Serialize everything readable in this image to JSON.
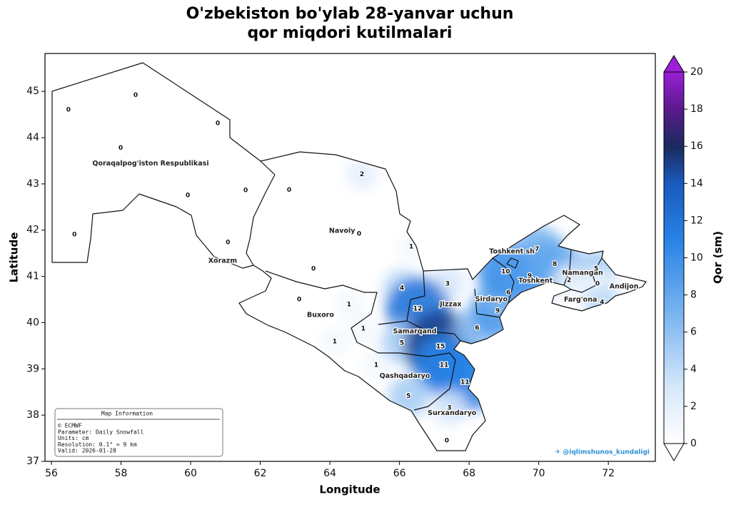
{
  "chart_data": {
    "type": "map",
    "title": [
      "O'zbekiston bo'ylab 28-yanvar uchun",
      "qor miqdori kutilmalari"
    ],
    "xlabel": "Longitude",
    "ylabel": "Latitude",
    "xlim": [
      55.815,
      73.35
    ],
    "ylim": [
      37,
      45.82
    ],
    "xticks": [
      56,
      58,
      60,
      62,
      64,
      66,
      68,
      70,
      72
    ],
    "yticks": [
      37,
      38,
      39,
      40,
      41,
      42,
      43,
      44,
      45
    ],
    "colorbar": {
      "label": "Qor (sm)",
      "lim": [
        0,
        20
      ],
      "ticks": [
        0,
        2,
        4,
        6,
        8,
        10,
        12,
        14,
        16,
        18,
        20
      ]
    },
    "regions": [
      {
        "name": "Qoraqalpog'iston Respublikasi",
        "lon": 58.85,
        "lat": 43.44
      },
      {
        "name": "Xorazm",
        "lon": 60.92,
        "lat": 41.33
      },
      {
        "name": "Navoiy",
        "lon": 64.35,
        "lat": 41.98
      },
      {
        "name": "Buxoro",
        "lon": 63.73,
        "lat": 40.16
      },
      {
        "name": "Samarqand",
        "lon": 66.44,
        "lat": 39.81
      },
      {
        "name": "Jizzax",
        "lon": 67.47,
        "lat": 40.39
      },
      {
        "name": "Sirdaryo",
        "lon": 68.64,
        "lat": 40.5
      },
      {
        "name": "Toshkent sh",
        "lon": 69.23,
        "lat": 41.53
      },
      {
        "name": "Toshkent",
        "lon": 69.91,
        "lat": 40.9
      },
      {
        "name": "Namangan",
        "lon": 71.26,
        "lat": 41.07
      },
      {
        "name": "Andijon",
        "lon": 72.45,
        "lat": 40.78
      },
      {
        "name": "Farg'ona",
        "lon": 71.2,
        "lat": 40.49
      },
      {
        "name": "Qashqadaryo",
        "lon": 66.15,
        "lat": 38.84
      },
      {
        "name": "Surxandaryo",
        "lon": 67.51,
        "lat": 38.04
      }
    ],
    "points": [
      {
        "lon": 56.49,
        "lat": 44.6,
        "value": 0
      },
      {
        "lon": 58.42,
        "lat": 44.92,
        "value": 0
      },
      {
        "lon": 57.99,
        "lat": 43.78,
        "value": 0
      },
      {
        "lon": 60.78,
        "lat": 44.31,
        "value": 0
      },
      {
        "lon": 59.92,
        "lat": 42.75,
        "value": 0
      },
      {
        "lon": 61.58,
        "lat": 42.86,
        "value": 0
      },
      {
        "lon": 62.83,
        "lat": 42.87,
        "value": 0
      },
      {
        "lon": 64.92,
        "lat": 43.21,
        "value": 2
      },
      {
        "lon": 56.66,
        "lat": 41.9,
        "value": 0
      },
      {
        "lon": 61.07,
        "lat": 41.73,
        "value": 0
      },
      {
        "lon": 64.84,
        "lat": 41.92,
        "value": 0
      },
      {
        "lon": 66.34,
        "lat": 41.64,
        "value": 1
      },
      {
        "lon": 63.53,
        "lat": 41.16,
        "value": 0
      },
      {
        "lon": 63.12,
        "lat": 40.5,
        "value": 0
      },
      {
        "lon": 64.55,
        "lat": 40.39,
        "value": 1
      },
      {
        "lon": 66.07,
        "lat": 40.75,
        "value": 4
      },
      {
        "lon": 67.38,
        "lat": 40.84,
        "value": 3
      },
      {
        "lon": 66.52,
        "lat": 40.3,
        "value": 12
      },
      {
        "lon": 64.96,
        "lat": 39.87,
        "value": 1
      },
      {
        "lon": 64.14,
        "lat": 39.59,
        "value": 1
      },
      {
        "lon": 66.07,
        "lat": 39.56,
        "value": 5
      },
      {
        "lon": 67.18,
        "lat": 39.48,
        "value": 15
      },
      {
        "lon": 68.23,
        "lat": 39.88,
        "value": 6
      },
      {
        "lon": 68.82,
        "lat": 40.25,
        "value": 9
      },
      {
        "lon": 69.13,
        "lat": 40.65,
        "value": 6
      },
      {
        "lon": 69.05,
        "lat": 41.1,
        "value": 10
      },
      {
        "lon": 69.95,
        "lat": 41.59,
        "value": 7
      },
      {
        "lon": 69.74,
        "lat": 41.01,
        "value": 9
      },
      {
        "lon": 70.46,
        "lat": 41.26,
        "value": 8
      },
      {
        "lon": 71.65,
        "lat": 41.16,
        "value": 5
      },
      {
        "lon": 70.87,
        "lat": 40.92,
        "value": 2
      },
      {
        "lon": 71.69,
        "lat": 40.84,
        "value": 0
      },
      {
        "lon": 71.82,
        "lat": 40.44,
        "value": 4
      },
      {
        "lon": 65.33,
        "lat": 39.08,
        "value": 1
      },
      {
        "lon": 67.28,
        "lat": 39.08,
        "value": 11
      },
      {
        "lon": 67.88,
        "lat": 38.71,
        "value": 11
      },
      {
        "lon": 66.26,
        "lat": 38.41,
        "value": 5
      },
      {
        "lon": 67.43,
        "lat": 38.16,
        "value": 3
      },
      {
        "lon": 67.36,
        "lat": 37.45,
        "value": 0
      }
    ],
    "info_box": {
      "title": "Map Information",
      "lines": [
        "© ECMWF",
        "Parameter: Daily Snowfall",
        "Units: cm",
        "Resolution: 0.1° ≈ 9 km",
        "Valid: 2026-01-28"
      ]
    },
    "credit": "✈ @iqlimshunos_kundaligi"
  }
}
